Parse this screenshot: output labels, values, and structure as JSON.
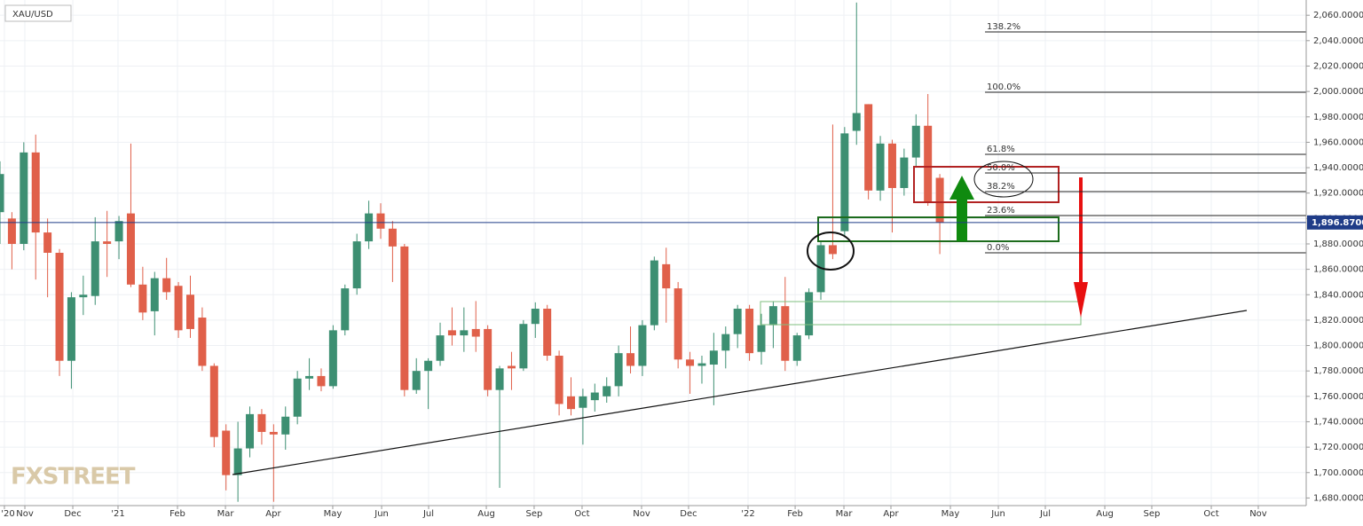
{
  "chart_data": {
    "type": "candlestick",
    "title": "XAU/USD",
    "watermark": "FXSTREET",
    "up_color": "#3d8f72",
    "down_color": "#e0604a",
    "grid": true,
    "x": [
      0,
      1,
      2,
      3,
      4,
      5,
      6,
      7,
      8,
      9,
      10,
      11,
      12,
      13,
      14,
      15,
      16,
      17,
      18,
      19,
      20,
      21,
      22,
      23,
      24,
      25,
      26,
      27,
      28,
      29,
      30,
      31,
      32,
      33,
      34,
      35,
      36,
      37,
      38,
      39,
      40,
      41,
      42,
      43,
      44,
      45,
      46,
      47,
      48,
      49,
      50,
      51,
      52,
      53,
      54,
      55,
      56,
      57,
      58,
      59,
      60,
      61,
      62,
      63,
      64,
      65,
      66,
      67,
      68,
      69,
      70,
      71,
      72,
      73,
      74,
      75,
      76,
      77,
      78,
      79
    ],
    "open": [
      1905,
      1900,
      1880,
      1952,
      1889,
      1873,
      1788,
      1838,
      1839,
      1882,
      1882,
      1904,
      1848,
      1827,
      1853,
      1847,
      1840,
      1822,
      1784,
      1733,
      1698,
      1719,
      1746,
      1732,
      1730,
      1744,
      1774,
      1776,
      1768,
      1812,
      1845,
      1882,
      1904,
      1892,
      1878,
      1765,
      1780,
      1788,
      1812,
      1808,
      1813,
      1813,
      1765,
      1784,
      1782,
      1817,
      1829,
      1792,
      1760,
      1751,
      1757,
      1760,
      1768,
      1794,
      1784,
      1816,
      1864,
      1845,
      1789,
      1784,
      1785,
      1796,
      1809,
      1829,
      1795,
      1816,
      1831,
      1788,
      1808,
      1842,
      1879,
      1890,
      1969,
      1990,
      1922,
      1959,
      1924,
      1948,
      1973,
      1932
    ],
    "high": [
      1945,
      1905,
      1960,
      1966,
      1900,
      1876,
      1842,
      1855,
      1901,
      1906,
      1902,
      1959,
      1862,
      1858,
      1869,
      1850,
      1855,
      1830,
      1786,
      1738,
      1740,
      1752,
      1750,
      1738,
      1752,
      1780,
      1790,
      1782,
      1816,
      1848,
      1888,
      1914,
      1912,
      1898,
      1880,
      1790,
      1790,
      1818,
      1830,
      1830,
      1835,
      1816,
      1784,
      1795,
      1820,
      1834,
      1832,
      1796,
      1775,
      1766,
      1770,
      1775,
      1800,
      1815,
      1820,
      1870,
      1877,
      1850,
      1795,
      1792,
      1810,
      1815,
      1832,
      1832,
      1825,
      1835,
      1854,
      1810,
      1845,
      1882,
      1974,
      1972,
      2070,
      1990,
      1965,
      1962,
      1955,
      1982,
      1998,
      1935
    ],
    "low": [
      1880,
      1860,
      1875,
      1852,
      1838,
      1776,
      1766,
      1824,
      1832,
      1854,
      1868,
      1846,
      1820,
      1808,
      1836,
      1806,
      1806,
      1780,
      1720,
      1686,
      1677,
      1712,
      1722,
      1677,
      1718,
      1738,
      1765,
      1764,
      1766,
      1808,
      1840,
      1876,
      1884,
      1850,
      1760,
      1762,
      1750,
      1784,
      1800,
      1795,
      1795,
      1760,
      1688,
      1765,
      1780,
      1806,
      1788,
      1745,
      1745,
      1722,
      1748,
      1755,
      1760,
      1778,
      1776,
      1812,
      1818,
      1782,
      1762,
      1770,
      1753,
      1782,
      1798,
      1788,
      1785,
      1798,
      1780,
      1784,
      1805,
      1836,
      1868,
      1886,
      1958,
      1915,
      1914,
      1889,
      1918,
      1940,
      1910,
      1872
    ],
    "close": [
      1935,
      1880,
      1952,
      1889,
      1873,
      1788,
      1838,
      1840,
      1882,
      1880,
      1898,
      1848,
      1826,
      1853,
      1842,
      1812,
      1813,
      1784,
      1728,
      1698,
      1719,
      1746,
      1732,
      1730,
      1744,
      1774,
      1776,
      1768,
      1812,
      1845,
      1882,
      1904,
      1892,
      1878,
      1765,
      1780,
      1788,
      1808,
      1808,
      1812,
      1807,
      1765,
      1782,
      1782,
      1817,
      1829,
      1792,
      1754,
      1750,
      1760,
      1763,
      1768,
      1794,
      1784,
      1816,
      1867,
      1845,
      1789,
      1784,
      1786,
      1796,
      1809,
      1829,
      1794,
      1816,
      1831,
      1788,
      1808,
      1842,
      1879,
      1872,
      1967,
      1983,
      1922,
      1959,
      1924,
      1948,
      1973,
      1913,
      1896.87
    ],
    "xlim": [
      0,
      109.8
    ],
    "ylim": [
      1674,
      2072
    ],
    "xticks": [
      {
        "value": 0.37,
        "label": "'20"
      },
      {
        "value": 2.09,
        "label": "Nov"
      },
      {
        "value": 6.12,
        "label": "Dec"
      },
      {
        "value": 9.92,
        "label": "'21"
      },
      {
        "value": 14.92,
        "label": "Feb"
      },
      {
        "value": 18.95,
        "label": "Mar"
      },
      {
        "value": 22.97,
        "label": "Apr"
      },
      {
        "value": 27.97,
        "label": "May"
      },
      {
        "value": 32.08,
        "label": "Jun"
      },
      {
        "value": 36.03,
        "label": "Jul"
      },
      {
        "value": 40.88,
        "label": "Aug"
      },
      {
        "value": 44.9,
        "label": "Sep"
      },
      {
        "value": 48.93,
        "label": "Oct"
      },
      {
        "value": 53.93,
        "label": "Nov"
      },
      {
        "value": 57.88,
        "label": "Dec"
      },
      {
        "value": 62.88,
        "label": "'22"
      },
      {
        "value": 66.84,
        "label": "Feb"
      },
      {
        "value": 70.94,
        "label": "Mar"
      },
      {
        "value": 74.89,
        "label": "Apr"
      },
      {
        "value": 79.89,
        "label": "May"
      },
      {
        "value": 83.92,
        "label": "Jun"
      },
      {
        "value": 87.87,
        "label": "Jul"
      },
      {
        "value": 92.87,
        "label": "Aug"
      },
      {
        "value": 96.82,
        "label": "Sep"
      },
      {
        "value": 101.82,
        "label": "Oct"
      },
      {
        "value": 105.77,
        "label": "Nov"
      }
    ],
    "yticks": [
      {
        "value": 1680,
        "label": "1,680.0000"
      },
      {
        "value": 1700,
        "label": "1,700.0000"
      },
      {
        "value": 1720,
        "label": "1,720.0000"
      },
      {
        "value": 1740,
        "label": "1,740.0000"
      },
      {
        "value": 1760,
        "label": "1,760.0000"
      },
      {
        "value": 1780,
        "label": "1,780.0000"
      },
      {
        "value": 1800,
        "label": "1,800.0000"
      },
      {
        "value": 1820,
        "label": "1,820.0000"
      },
      {
        "value": 1840,
        "label": "1,840.0000"
      },
      {
        "value": 1860,
        "label": "1,860.0000"
      },
      {
        "value": 1880,
        "label": "1,880.0000"
      },
      {
        "value": 1900,
        "label": "1,900.0000"
      },
      {
        "value": 1920,
        "label": "1,920.0000"
      },
      {
        "value": 1940,
        "label": "1,940.0000"
      },
      {
        "value": 1960,
        "label": "1,960.0000"
      },
      {
        "value": 1980,
        "label": "1,980.0000"
      },
      {
        "value": 2000,
        "label": "2,000.0000"
      },
      {
        "value": 2020,
        "label": "2,020.0000"
      },
      {
        "value": 2040,
        "label": "2,040.0000"
      },
      {
        "value": 2060,
        "label": "2,060.0000"
      }
    ],
    "last_price": {
      "value": 1896.87,
      "label": "1,896.8700",
      "color": "#1f3c88"
    },
    "fib": {
      "start": 82.8,
      "levels": [
        {
          "label": "138.2%",
          "value": 2046.9
        },
        {
          "label": "100.0%",
          "value": 1999.4
        },
        {
          "label": "61.8%",
          "value": 1950.5
        },
        {
          "label": "50.0%",
          "value": 1935.8
        },
        {
          "label": "38.2%",
          "value": 1921.2
        },
        {
          "label": "23.6%",
          "value": 1902.3
        },
        {
          "label": "0.0%",
          "value": 1873
        }
      ]
    }
  }
}
